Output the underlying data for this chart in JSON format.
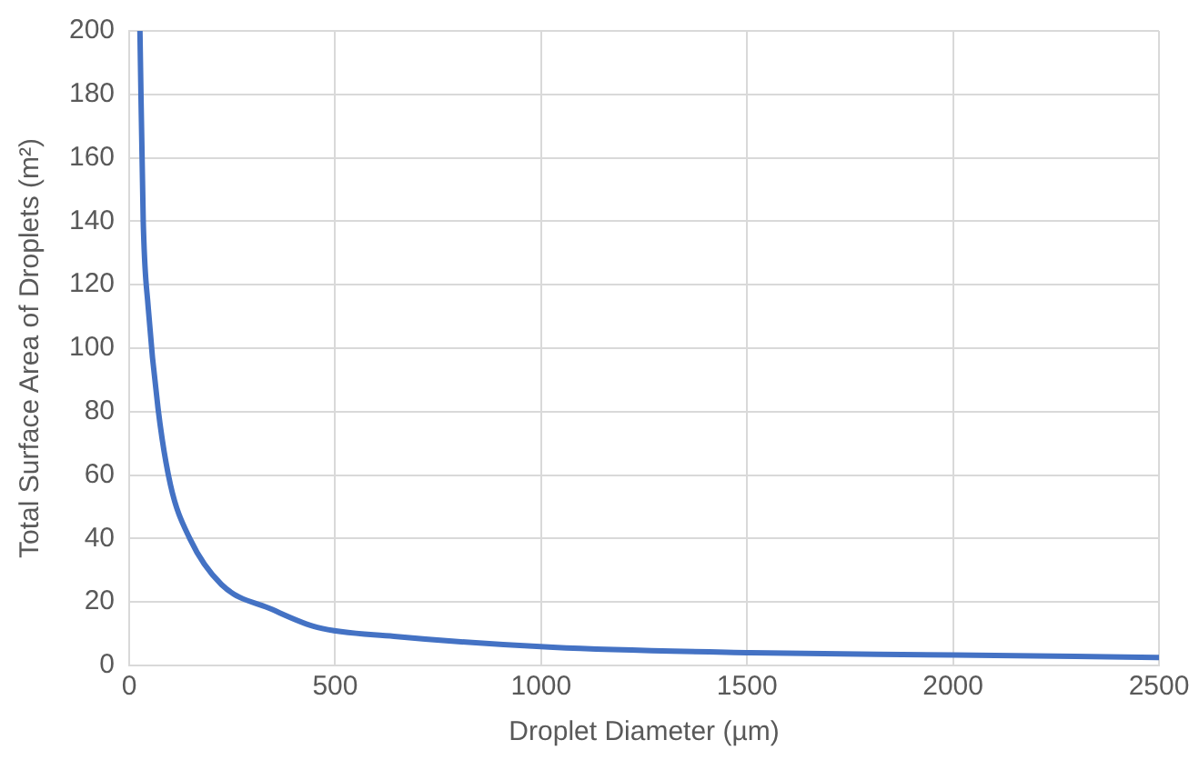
{
  "chart_data": {
    "type": "line",
    "xlabel": "Droplet Diameter (µm)",
    "ylabel": "Total Surface Area of Droplets (m²)",
    "x": [
      26,
      34,
      46,
      70,
      100,
      147,
      224,
      348,
      457,
      643,
      1029,
      1510,
      2005,
      2500
    ],
    "series": [
      {
        "color": "#4472c4",
        "values": [
          200,
          140,
          113,
          81,
          57,
          40,
          25.5,
          17.6,
          12,
          9.2,
          5.7,
          4,
          3.3,
          2.5
        ]
      }
    ],
    "xlim": [
      0,
      2500
    ],
    "xticks": [
      0,
      500,
      1000,
      1500,
      2000,
      2500
    ],
    "ylim": [
      0,
      200
    ],
    "yticks": [
      0,
      20,
      40,
      60,
      80,
      100,
      120,
      140,
      160,
      180,
      200
    ],
    "grid": true,
    "legend": false,
    "marker": "none",
    "line_style": "solid"
  }
}
